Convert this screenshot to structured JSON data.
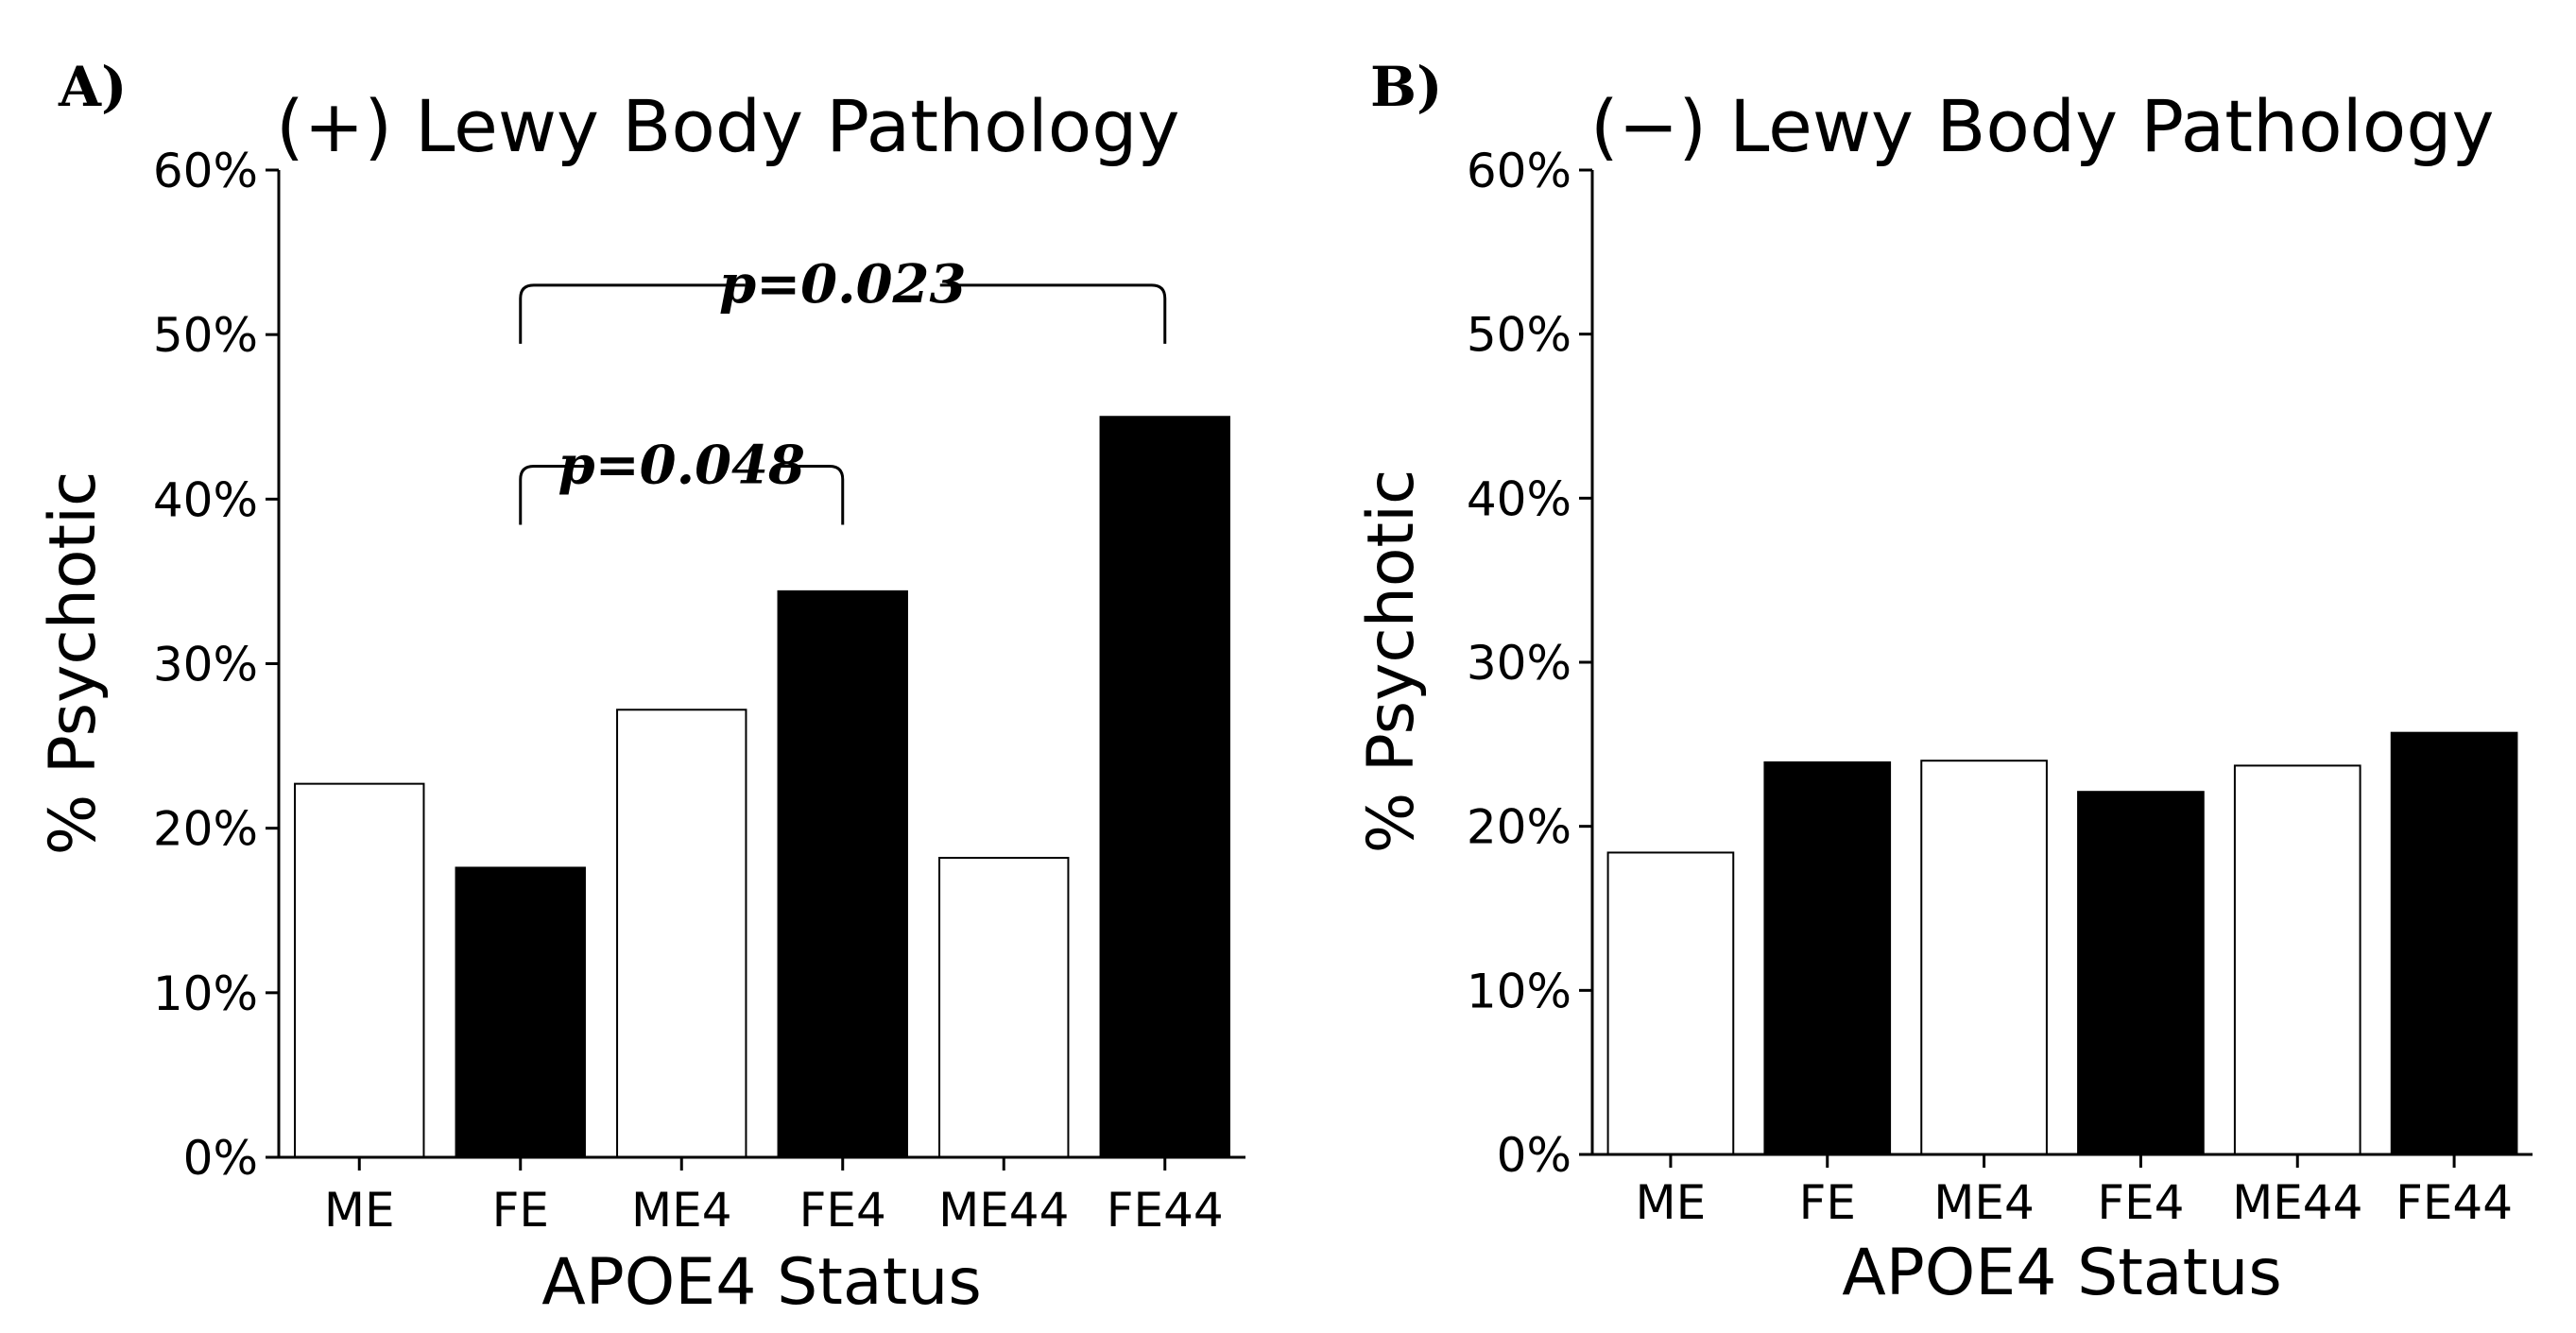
{
  "chart_data": [
    {
      "type": "bar",
      "panel_label": "A)",
      "title": "(+) Lewy Body Pathology",
      "xlabel": "APOE4 Status",
      "ylabel": "% Psychotic",
      "ylim": [
        0,
        60
      ],
      "yticks": [
        "0%",
        "10%",
        "20%",
        "30%",
        "40%",
        "50%",
        "60%"
      ],
      "categories": [
        "ME",
        "FE",
        "ME4",
        "FE4",
        "ME44",
        "FE44"
      ],
      "values": [
        22.7,
        17.6,
        27.2,
        34.4,
        18.2,
        45.0
      ],
      "bar_fills": [
        "#ffffff",
        "#000000",
        "#ffffff",
        "#000000",
        "#ffffff",
        "#000000"
      ],
      "annotations": [
        {
          "text": "p=0.048",
          "from": "FE",
          "to": "FE4",
          "y": 42
        },
        {
          "text": "p=0.023",
          "from": "FE",
          "to": "FE44",
          "y": 53
        }
      ]
    },
    {
      "type": "bar",
      "panel_label": "B)",
      "title": "(−) Lewy Body Pathology",
      "xlabel": "APOE4 Status",
      "ylabel": "% Psychotic",
      "ylim": [
        0,
        60
      ],
      "yticks": [
        "0%",
        "10%",
        "20%",
        "30%",
        "40%",
        "50%",
        "60%"
      ],
      "categories": [
        "ME",
        "FE",
        "ME4",
        "FE4",
        "ME44",
        "FE44"
      ],
      "values": [
        18.4,
        23.9,
        24.0,
        22.1,
        23.7,
        25.7
      ],
      "bar_fills": [
        "#ffffff",
        "#000000",
        "#ffffff",
        "#000000",
        "#ffffff",
        "#000000"
      ],
      "annotations": []
    }
  ]
}
